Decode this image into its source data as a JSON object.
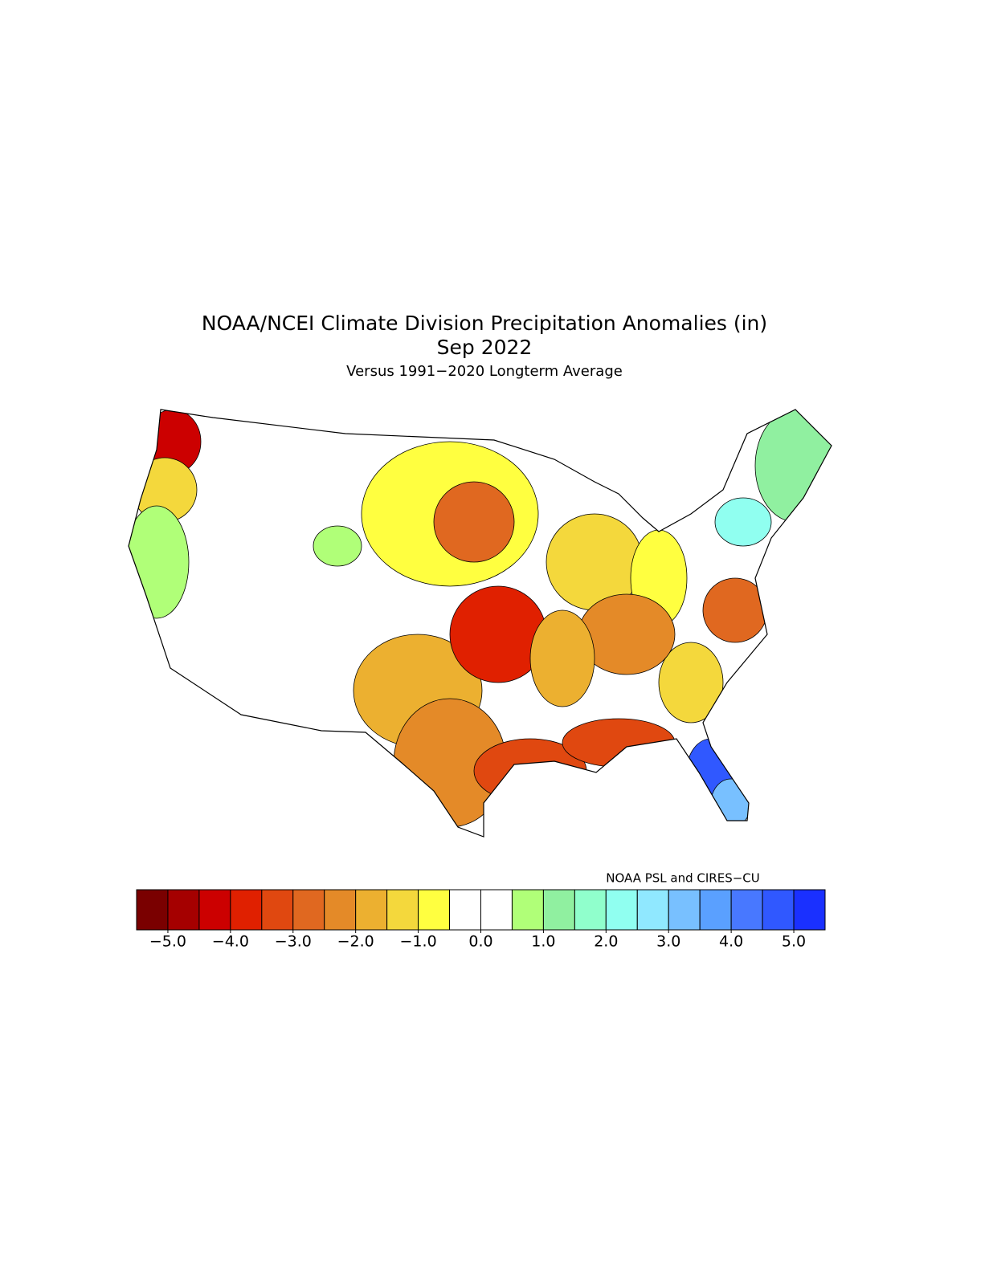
{
  "title": "NOAA/NCEI Climate Division Precipitation Anomalies (in)",
  "date": "Sep 2022",
  "subtitle": "Versus 1991−2020 Longterm Average",
  "credit": "NOAA PSL and CIRES−CU",
  "colorbar": {
    "lim": [
      -5.5,
      5.5
    ],
    "colors": [
      "#7a0000",
      "#a50000",
      "#cc0000",
      "#e02000",
      "#e04810",
      "#e06820",
      "#e48a28",
      "#ecb030",
      "#f4d83c",
      "#ffff40",
      "#ffffff",
      "#ffffff",
      "#b0ff78",
      "#90f0a0",
      "#90ffcc",
      "#90fff0",
      "#90e8ff",
      "#78c0ff",
      "#5aa0ff",
      "#4878ff",
      "#3058ff",
      "#1a30ff"
    ],
    "ticks": [
      {
        "value": -5,
        "label": "−5.0"
      },
      {
        "value": -4,
        "label": "−4.0"
      },
      {
        "value": -3,
        "label": "−3.0"
      },
      {
        "value": -2,
        "label": "−2.0"
      },
      {
        "value": -1,
        "label": "−1.0"
      },
      {
        "value": 0,
        "label": "0.0"
      },
      {
        "value": 1,
        "label": "1.0"
      },
      {
        "value": 2,
        "label": "2.0"
      },
      {
        "value": 3,
        "label": "3.0"
      },
      {
        "value": 4,
        "label": "4.0"
      },
      {
        "value": 5,
        "label": "5.0"
      }
    ]
  },
  "regions": [
    -4.2,
    -1.5,
    0.8,
    -0.8,
    -2.7,
    -1.8,
    -3.7,
    -2.3,
    -3.3,
    -3.2,
    4.7,
    3.2,
    1.3,
    2.2,
    -1.3,
    -2.7,
    -0.7,
    -1.2,
    -2.2,
    -1.6,
    0.7
  ]
}
